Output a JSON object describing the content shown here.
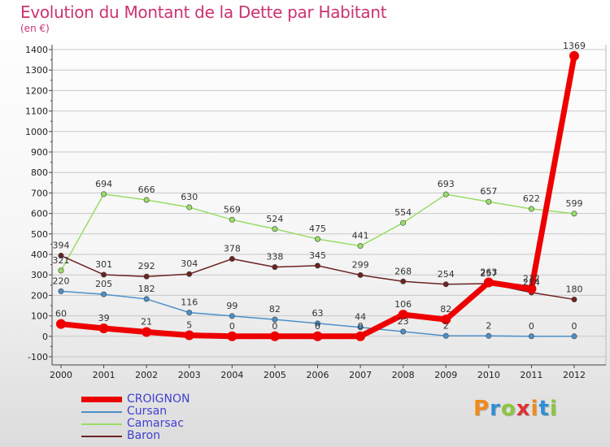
{
  "title": "Evolution du Montant de la Dette par Habitant",
  "unit": "(en €)",
  "logo": "Proxiti",
  "chart_data": {
    "type": "line",
    "title": "Evolution du Montant de la Dette par Habitant",
    "ylabel": "(en €)",
    "xlabel": "",
    "ylim": [
      -100,
      1400
    ],
    "yticks": [
      -100,
      0,
      100,
      200,
      300,
      400,
      500,
      600,
      700,
      800,
      900,
      1000,
      1100,
      1200,
      1300,
      1400
    ],
    "categories": [
      "2000",
      "2001",
      "2002",
      "2003",
      "2004",
      "2005",
      "2006",
      "2007",
      "2008",
      "2009",
      "2010",
      "2011",
      "2012"
    ],
    "legend_position": "bottom-left",
    "series": [
      {
        "name": "CROIGNON",
        "color": "#ee0000",
        "values": [
          60,
          39,
          21,
          5,
          0,
          0,
          0,
          0,
          106,
          82,
          263,
          232,
          1369
        ]
      },
      {
        "name": "Cursan",
        "color": "#4d8fc8",
        "values": [
          220,
          205,
          182,
          116,
          99,
          82,
          63,
          44,
          23,
          2,
          2,
          0,
          0
        ]
      },
      {
        "name": "Camarsac",
        "color": "#99dd66",
        "values": [
          321,
          694,
          666,
          630,
          569,
          524,
          475,
          441,
          554,
          693,
          657,
          622,
          599
        ]
      },
      {
        "name": "Baron",
        "color": "#6b2222",
        "values": [
          394,
          301,
          292,
          304,
          378,
          338,
          345,
          299,
          268,
          254,
          257,
          214,
          180
        ]
      }
    ]
  }
}
